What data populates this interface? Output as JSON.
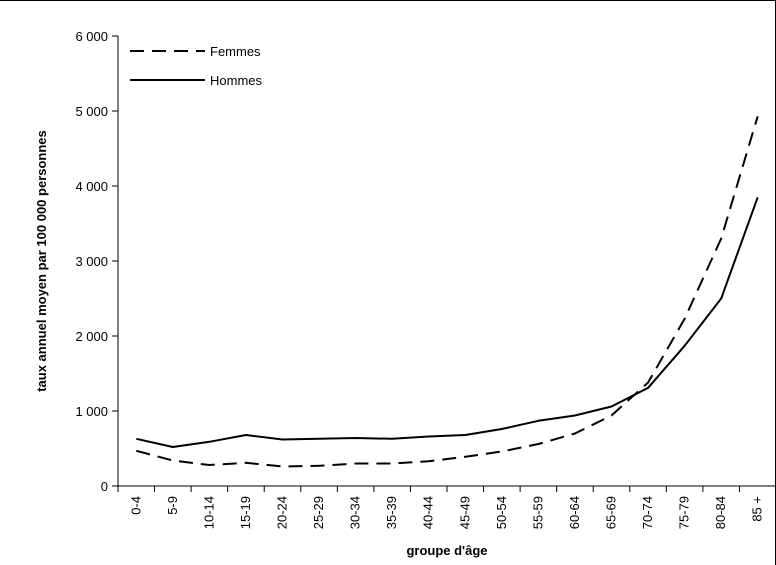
{
  "chart_data": {
    "type": "line",
    "title": "",
    "xlabel": "groupe d'âge",
    "ylabel": "taux annuel moyen par 100 000 personnes",
    "ylim": [
      0,
      6000
    ],
    "yticks": [
      0,
      1000,
      2000,
      3000,
      4000,
      5000,
      6000
    ],
    "ytick_labels": [
      "0",
      "1 000",
      "2 000",
      "3 000",
      "4 000",
      "5 000",
      "6 000"
    ],
    "categories": [
      "0-4",
      "5-9",
      "10-14",
      "15-19",
      "20-24",
      "25-29",
      "30-34",
      "35-39",
      "40-44",
      "45-49",
      "50-54",
      "55-59",
      "60-64",
      "65-69",
      "70-74",
      "75-79",
      "80-84",
      "85 +"
    ],
    "legend_position": "top-left",
    "grid": false,
    "series": [
      {
        "name": "Femmes",
        "style": "dashed",
        "color": "#000000",
        "values": [
          470,
          340,
          280,
          310,
          260,
          270,
          300,
          300,
          330,
          390,
          460,
          560,
          700,
          940,
          1380,
          2230,
          3300,
          4930
        ]
      },
      {
        "name": "Hommes",
        "style": "solid",
        "color": "#000000",
        "values": [
          630,
          520,
          590,
          680,
          620,
          630,
          640,
          630,
          660,
          680,
          760,
          870,
          940,
          1060,
          1310,
          1870,
          2500,
          3850
        ]
      }
    ]
  }
}
